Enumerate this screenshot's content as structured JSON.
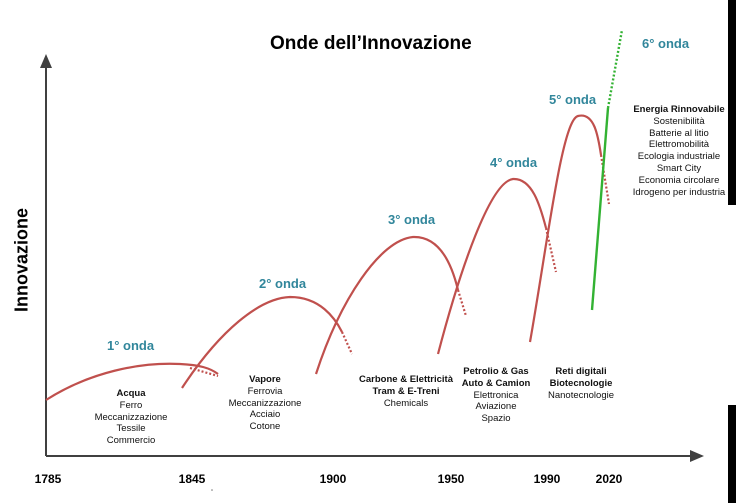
{
  "title": "Onde dell’Innovazione",
  "y_axis_label": "Innovazione",
  "colors": {
    "wave": "#c0504d",
    "wave6": "#33b233",
    "label": "#31869b",
    "axis": "#404040"
  },
  "waves": [
    {
      "label": "1° onda",
      "heading": [
        "Acqua"
      ],
      "items": [
        "Ferro",
        "Meccanizzazione",
        "Tessile",
        "Commercio"
      ]
    },
    {
      "label": "2° onda",
      "heading": [
        "Vapore"
      ],
      "items": [
        "Ferrovia",
        "Meccanizzazione",
        "Acciaio",
        "Cotone"
      ]
    },
    {
      "label": "3° onda",
      "heading": [
        "Carbone & Elettricità",
        "Tram & E-Treni"
      ],
      "items": [
        "Chemicals"
      ]
    },
    {
      "label": "4° onda",
      "heading": [
        "Petrolio & Gas",
        "Auto & Camion"
      ],
      "items": [
        "Elettronica",
        "Aviazione",
        "Spazio"
      ]
    },
    {
      "label": "5° onda",
      "heading": [
        "Reti digitali",
        "Biotecnologie"
      ],
      "items": [
        "Nanotecnologie"
      ]
    },
    {
      "label": "6° onda",
      "heading": [
        "Energia Rinnovabile"
      ],
      "items": [
        "Sostenibilità",
        "Batterie al litio",
        "Elettromobilità",
        "Ecologia industriale",
        "Smart City",
        "Economia circolare",
        "Idrogeno per industria"
      ]
    }
  ],
  "years": [
    "1785",
    "1845",
    "1900",
    "1950",
    "1990",
    "2020"
  ]
}
